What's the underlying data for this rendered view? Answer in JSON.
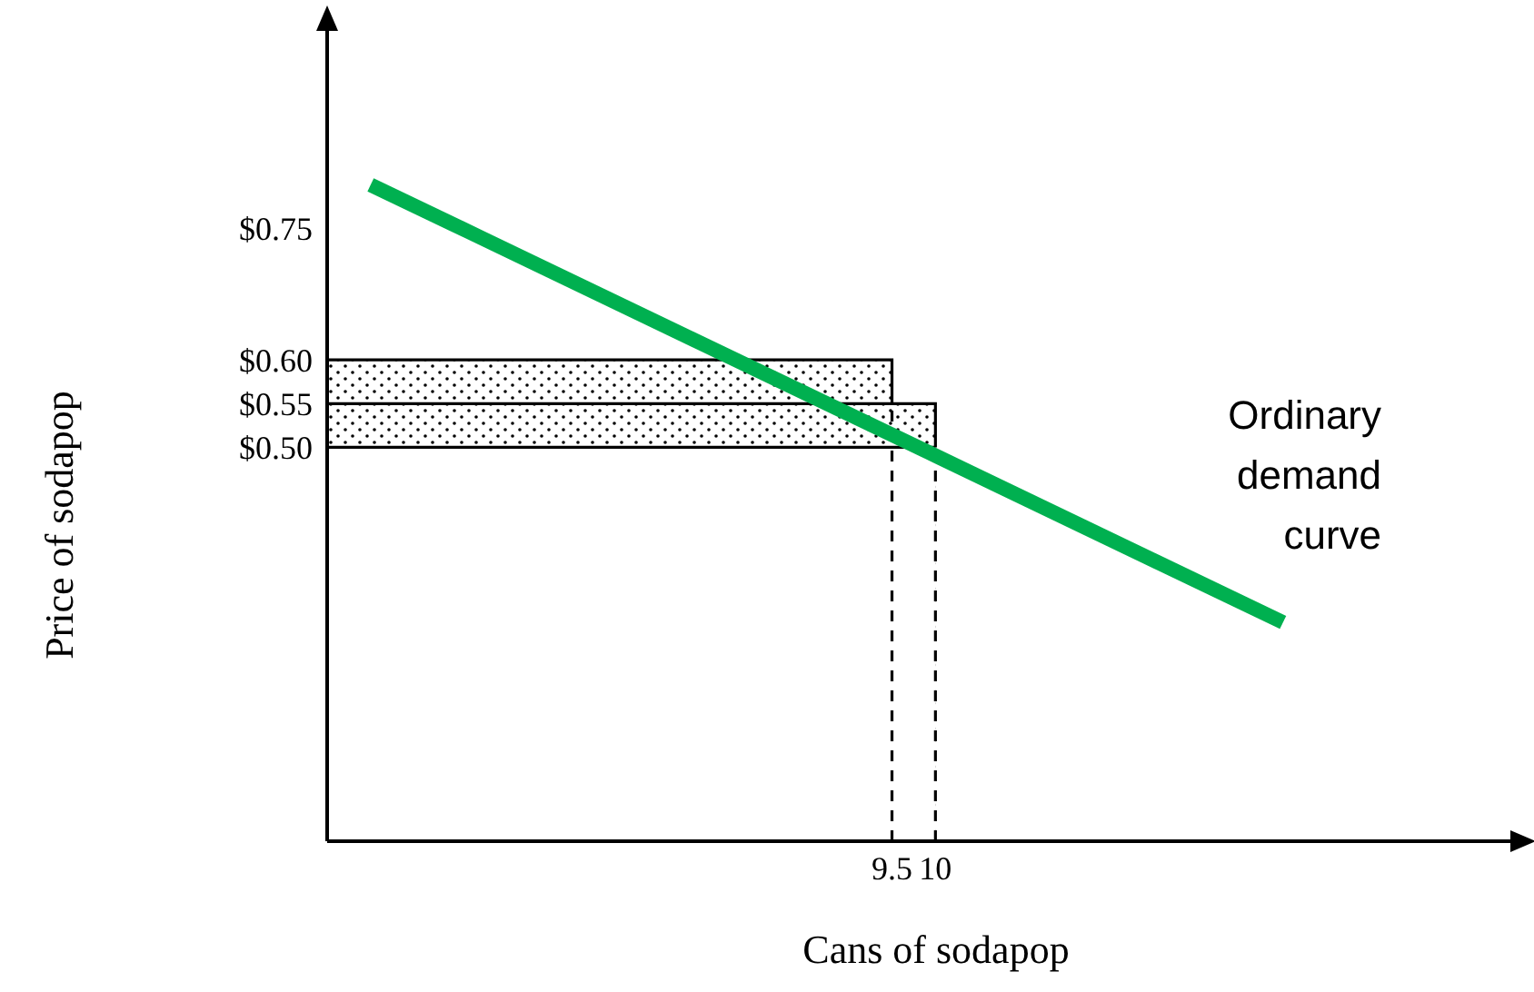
{
  "chart_data": {
    "type": "line",
    "xlabel": "Cans of sodapop",
    "ylabel": "Price of sodapop",
    "xlim": [
      3,
      16.7
    ],
    "ylim": [
      0.05,
      0.98
    ],
    "xticks": [
      9.5,
      10
    ],
    "yticks": [
      {
        "value": 0.5,
        "label": "$0.50"
      },
      {
        "value": 0.55,
        "label": "$0.55"
      },
      {
        "value": 0.6,
        "label": "$0.60"
      },
      {
        "value": 0.75,
        "label": "$0.75"
      }
    ],
    "series": [
      {
        "type": "area",
        "color": "#000000",
        "x": [
          3,
          9.5,
          9.5
        ],
        "values": [
          0.6,
          0.6,
          0.55
        ]
      },
      {
        "type": "area",
        "color": "#000000",
        "x": [
          3,
          10,
          10
        ],
        "values": [
          0.55,
          0.55,
          0.5
        ]
      },
      {
        "type": "area",
        "color": "#ffffff",
        "x": [
          3,
          10
        ],
        "values": [
          0.5,
          0.5
        ]
      },
      {
        "type": "line",
        "color": "#000000",
        "line_style": "dashed",
        "x": [
          9.5,
          9.5
        ],
        "values": [
          0.05,
          0.55
        ]
      },
      {
        "type": "line",
        "color": "#000000",
        "line_style": "dashed",
        "x": [
          10,
          10
        ],
        "values": [
          0.05,
          0.5
        ]
      },
      {
        "type": "line",
        "name": "Ordinary demand curve",
        "color": "#00b050",
        "line_style": "solid",
        "x": [
          3.5,
          14
        ],
        "values": [
          0.8,
          0.3
        ]
      }
    ]
  }
}
